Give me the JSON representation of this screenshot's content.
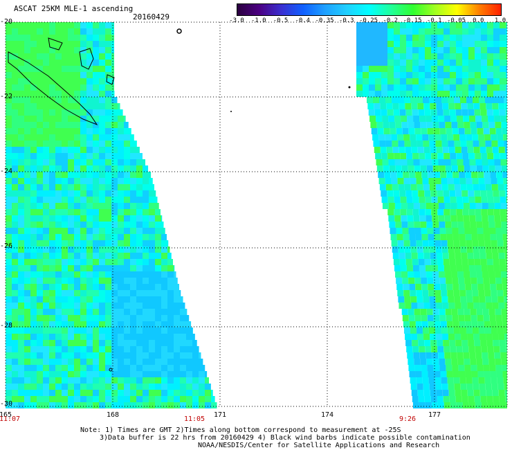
{
  "header": {
    "title": "ASCAT 25KM MLE-1 ascending",
    "date": "20160429"
  },
  "colorbar": {
    "labels": [
      "-3.0",
      "-1.0",
      "-0.5",
      "-0.4",
      "-0.35",
      "-0.3",
      "-0.25",
      "-0.2",
      "-0.15",
      "-0.1",
      "-0.05",
      "0.0",
      "1.0"
    ],
    "colors": [
      "#2a003f",
      "#4b0082",
      "#3a2fd0",
      "#1060ff",
      "#1ea0ff",
      "#20d0ff",
      "#00ffff",
      "#20ff9a",
      "#30ff30",
      "#a0ff20",
      "#ffff00",
      "#ff8000",
      "#ff2000"
    ]
  },
  "axes": {
    "y_labels": [
      "-20",
      "-22",
      "-24",
      "-26",
      "-28",
      "-30"
    ],
    "x_labels": [
      "165",
      "168",
      "171",
      "174",
      "177"
    ],
    "times": [
      "11:07",
      "11:05",
      "9:26"
    ]
  },
  "notes": {
    "line1": "Note: 1) Times are GMT 2)Times along bottom correspond to measurement at -25S",
    "line2": "3)Data buffer is 22 hrs from 20160429 4) Black wind barbs indicate possible contamination",
    "line3": "NOAA/NESDIS/Center for Satellite Applications and Research"
  }
}
